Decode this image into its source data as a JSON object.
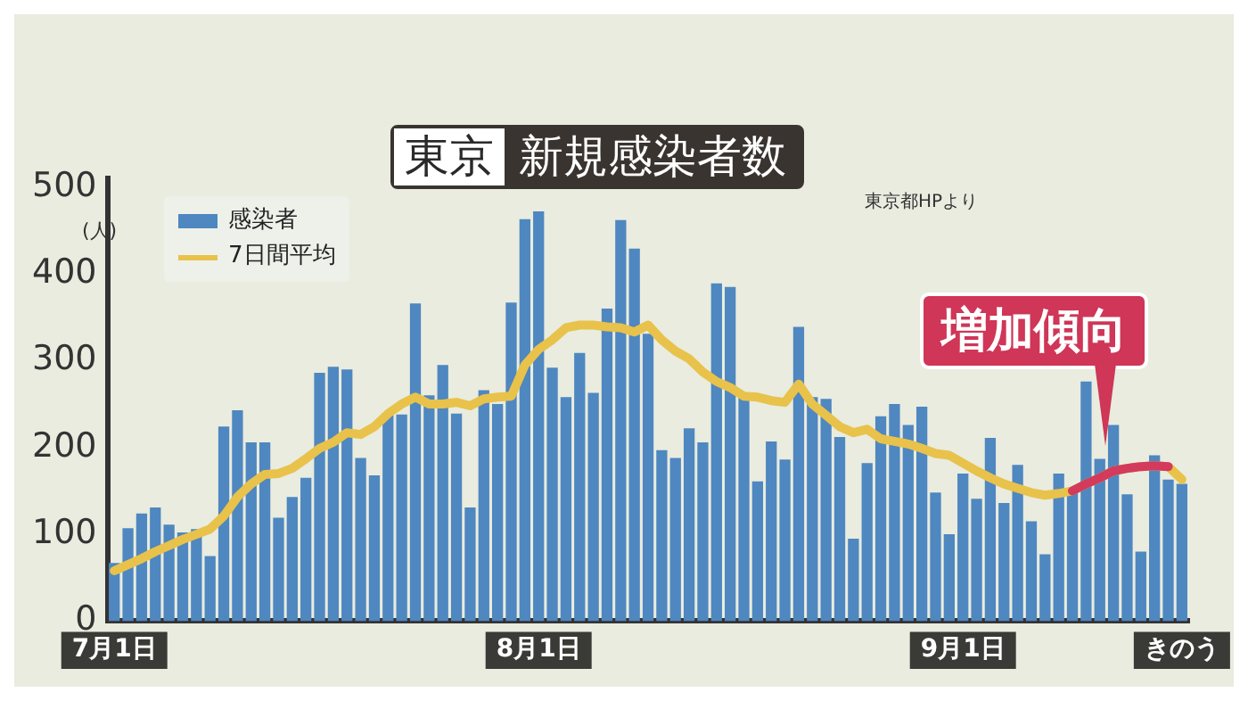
{
  "chart_data": {
    "type": "bar",
    "title": "東京",
    "subtitle": "新規感染者数",
    "ylabel": "(人)",
    "annotations": [
      "東京都HPより",
      "増加傾向"
    ],
    "categories": [
      "7月1日",
      null,
      null,
      null,
      null,
      null,
      null,
      null,
      null,
      null,
      null,
      null,
      null,
      null,
      null,
      null,
      null,
      null,
      null,
      null,
      null,
      null,
      null,
      null,
      null,
      null,
      null,
      null,
      null,
      null,
      null,
      "8月1日",
      null,
      null,
      null,
      null,
      null,
      null,
      null,
      null,
      null,
      null,
      null,
      null,
      null,
      null,
      null,
      null,
      null,
      null,
      null,
      null,
      null,
      null,
      null,
      null,
      null,
      null,
      null,
      null,
      null,
      null,
      "9月1日",
      null,
      null,
      null,
      null,
      null,
      null,
      null,
      null,
      null,
      null,
      null,
      null,
      null,
      null,
      null,
      "きのう"
    ],
    "series": [
      {
        "name": "感染者",
        "color": "#4f87c0",
        "values": [
          67,
          107,
          124,
          131,
          111,
          102,
          106,
          75,
          224,
          243,
          206,
          206,
          119,
          143,
          165,
          286,
          293,
          290,
          188,
          168,
          237,
          238,
          366,
          260,
          295,
          239,
          131,
          266,
          250,
          367,
          463,
          472,
          292,
          258,
          309,
          263,
          360,
          462,
          429,
          331,
          197,
          188,
          222,
          206,
          389,
          385,
          260,
          161,
          207,
          186,
          339,
          258,
          256,
          212,
          95,
          182,
          236,
          250,
          226,
          247,
          148,
          100,
          170,
          141,
          211,
          136,
          180,
          115,
          77,
          170,
          149,
          276,
          187,
          226,
          146,
          80,
          191,
          163,
          158
        ]
      },
      {
        "name": "7日間平均",
        "type": "line",
        "color": "#e8c24a",
        "values": [
          58,
          65,
          72,
          80,
          87,
          94,
          100,
          106,
          121,
          143,
          158,
          169,
          170,
          176,
          187,
          199,
          206,
          217,
          215,
          224,
          239,
          250,
          258,
          250,
          250,
          252,
          248,
          256,
          258,
          259,
          295,
          313,
          324,
          338,
          341,
          341,
          339,
          338,
          333,
          341,
          324,
          311,
          302,
          287,
          276,
          269,
          259,
          258,
          254,
          252,
          273,
          250,
          237,
          224,
          217,
          221,
          210,
          207,
          204,
          199,
          193,
          191,
          182,
          173,
          165,
          158,
          153,
          148,
          145,
          147,
          150,
          158,
          165,
          173,
          176,
          178,
          179,
          178,
          163
        ]
      },
      {
        "type": "line",
        "color": "#d33a5c",
        "values": [
          null,
          null,
          null,
          null,
          null,
          null,
          null,
          null,
          null,
          null,
          null,
          null,
          null,
          null,
          null,
          null,
          null,
          null,
          null,
          null,
          null,
          null,
          null,
          null,
          null,
          null,
          null,
          null,
          null,
          null,
          null,
          null,
          null,
          null,
          null,
          null,
          null,
          null,
          null,
          null,
          null,
          null,
          null,
          null,
          null,
          null,
          null,
          null,
          null,
          null,
          null,
          null,
          null,
          null,
          null,
          null,
          null,
          null,
          null,
          null,
          null,
          null,
          null,
          null,
          null,
          null,
          null,
          null,
          null,
          null,
          150,
          158,
          165,
          173,
          176,
          178,
          179,
          178,
          null
        ]
      }
    ],
    "ylim": [
      0,
      510
    ],
    "yticks": [
      0,
      100,
      200,
      300,
      400,
      500
    ],
    "legend": "top left"
  }
}
